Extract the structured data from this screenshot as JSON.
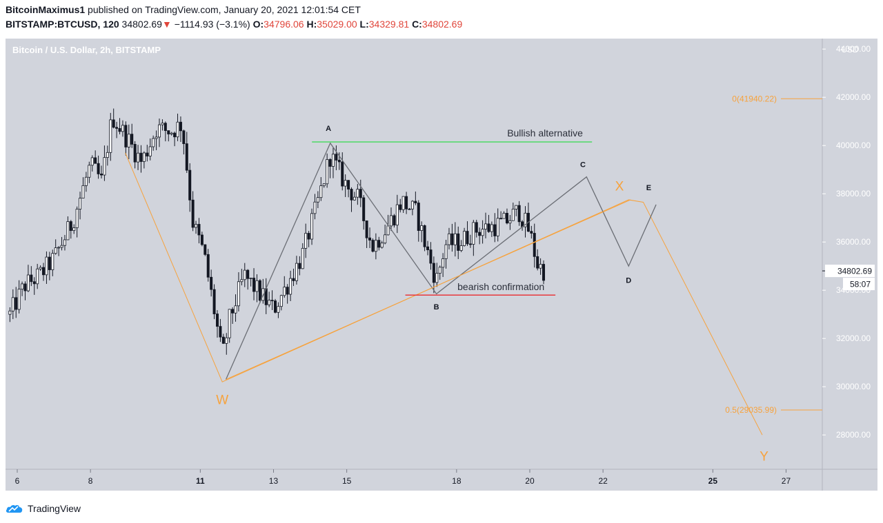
{
  "header": {
    "author": "BitcoinMaximus1",
    "published_text": "published on TradingView.com, January 20, 2021 12:01:54 CET",
    "symbol": "BITSTAMP:BTCUSD, 120",
    "last": "34802.69",
    "change": "−1114.93 (−3.1%)",
    "open_label": "O:",
    "open": "34796.06",
    "high_label": "H:",
    "high": "35029.00",
    "low_label": "L:",
    "low": "34329.81",
    "close_label": "C:",
    "close": "34802.69"
  },
  "chart_data": {
    "type": "candlestick",
    "title": "Bitcoin / U.S. Dollar, 2h, BITSTAMP",
    "currency": "USD",
    "ylim": [
      27300,
      45000
    ],
    "y_ticks": [
      "28000.00",
      "30000.00",
      "32000.00",
      "34000.00",
      "36000.00",
      "38000.00",
      "40000.00",
      "42000.00",
      "44000.00"
    ],
    "x_ticks": [
      "6",
      "8",
      "11",
      "13",
      "15",
      "18",
      "20",
      "22",
      "25",
      "27"
    ],
    "x_tick_days": [
      6,
      8,
      11,
      13,
      15,
      18,
      20,
      22,
      25,
      27
    ],
    "x_bold_ticks": [
      "11",
      "25"
    ],
    "price_label": "34802.69",
    "countdown_label": "58:07",
    "colors": {
      "background": "#d1d4dc",
      "candles": "#131722",
      "wxy": "#f7a23c",
      "abcde": "#6b6e75",
      "bullish": "#4cd964",
      "bearish": "#e8383d",
      "fib": "#f7a23c",
      "price_tag": "#131722"
    },
    "horizontal_lines": [
      {
        "label": "Bullish alternative",
        "price": 40150,
        "x_start": 14.05,
        "x_end": 21.7,
        "color_key": "bullish"
      },
      {
        "label": "bearish confirmation",
        "price": 33800,
        "x_start": 16.6,
        "x_end": 20.7,
        "color_key": "bearish"
      }
    ],
    "fib_levels": [
      {
        "label": "0(41940.22)",
        "price": 41940.22
      },
      {
        "label": "0.5(29035.99)",
        "price": 29035.99
      }
    ],
    "wave_wxy": {
      "labels": [
        "W",
        "X",
        "Y"
      ],
      "points": [
        {
          "day": 8.95,
          "price": 39700
        },
        {
          "day": 11.6,
          "price": 30200
        },
        {
          "day": 22.7,
          "price": 37750
        },
        {
          "day": 23.1,
          "price": 37650
        },
        {
          "day": 26.35,
          "price": 28000
        }
      ],
      "label_points": [
        {
          "label": "W",
          "day": 11.6,
          "price": 29450
        },
        {
          "label": "X",
          "day": 22.45,
          "price": 38300
        },
        {
          "label": "Y",
          "day": 26.4,
          "price": 27100
        }
      ]
    },
    "wave_abcde": {
      "points": [
        {
          "day": 11.7,
          "price": 30300
        },
        {
          "day": 14.55,
          "price": 40100
        },
        {
          "day": 17.45,
          "price": 33850
        },
        {
          "day": 21.55,
          "price": 38700
        },
        {
          "day": 22.7,
          "price": 35000
        },
        {
          "day": 23.45,
          "price": 37550
        }
      ],
      "labels": [
        {
          "label": "A",
          "day": 14.5,
          "price": 40600
        },
        {
          "label": "B",
          "day": 17.45,
          "price": 33200
        },
        {
          "label": "C",
          "day": 21.45,
          "price": 39100
        },
        {
          "label": "D",
          "day": 22.7,
          "price": 34300
        },
        {
          "label": "E",
          "day": 23.25,
          "price": 38150
        }
      ]
    },
    "candle_path": [
      [
        5.8,
        33000
      ],
      [
        6.2,
        34200
      ],
      [
        6.6,
        34600
      ],
      [
        7.0,
        35300
      ],
      [
        7.5,
        36800
      ],
      [
        8.0,
        39200
      ],
      [
        8.3,
        38500
      ],
      [
        8.6,
        41200
      ],
      [
        9.0,
        40300
      ],
      [
        9.4,
        39300
      ],
      [
        9.8,
        40700
      ],
      [
        10.2,
        40600
      ],
      [
        10.5,
        40900
      ],
      [
        10.8,
        36800
      ],
      [
        11.1,
        35500
      ],
      [
        11.4,
        33000
      ],
      [
        11.6,
        31200
      ],
      [
        11.8,
        32800
      ],
      [
        12.2,
        34600
      ],
      [
        12.6,
        33900
      ],
      [
        13.0,
        33200
      ],
      [
        13.4,
        34300
      ],
      [
        13.8,
        35500
      ],
      [
        14.2,
        37600
      ],
      [
        14.55,
        39600
      ],
      [
        15.0,
        38300
      ],
      [
        15.3,
        37800
      ],
      [
        15.7,
        35800
      ],
      [
        16.1,
        36600
      ],
      [
        16.5,
        37700
      ],
      [
        16.9,
        37200
      ],
      [
        17.2,
        35600
      ],
      [
        17.45,
        34400
      ],
      [
        17.7,
        35900
      ],
      [
        18.1,
        36000
      ],
      [
        18.5,
        36500
      ],
      [
        18.9,
        36600
      ],
      [
        19.3,
        36800
      ],
      [
        19.7,
        37300
      ],
      [
        20.0,
        36400
      ],
      [
        20.2,
        35100
      ],
      [
        20.4,
        34800
      ]
    ]
  },
  "footer": {
    "brand": "TradingView"
  }
}
